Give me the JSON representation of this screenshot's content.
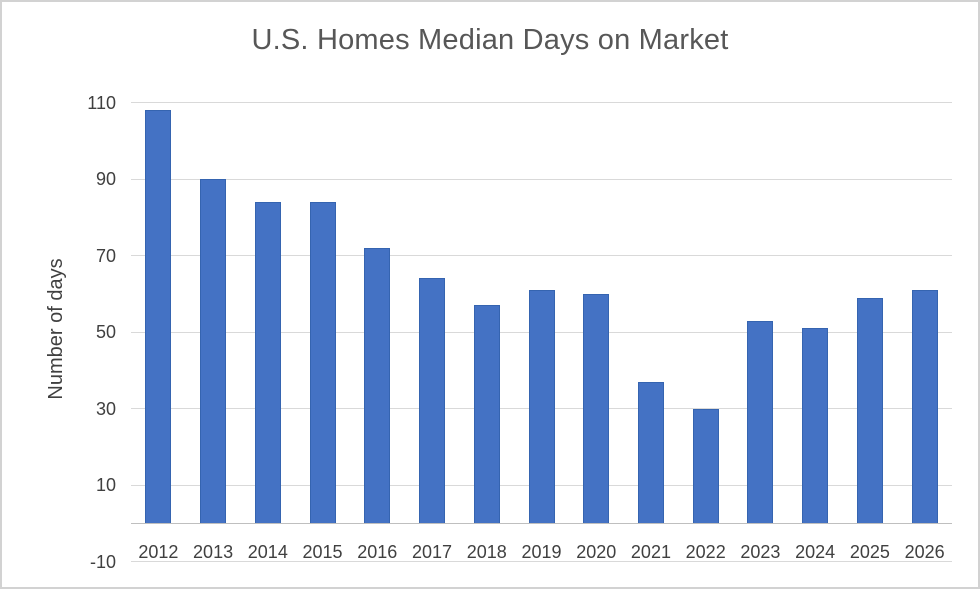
{
  "chart_data": {
    "type": "bar",
    "title": "U.S. Homes Median Days on Market",
    "ylabel": "Number of days",
    "xlabel": "",
    "categories": [
      "2012",
      "2013",
      "2014",
      "2015",
      "2016",
      "2017",
      "2018",
      "2019",
      "2020",
      "2021",
      "2022",
      "2023",
      "2024",
      "2025",
      "2026"
    ],
    "values": [
      108,
      90,
      84,
      84,
      72,
      64,
      57,
      61,
      60,
      37,
      30,
      53,
      51,
      59,
      61
    ],
    "yticks": [
      110,
      90,
      70,
      50,
      30,
      10,
      -10
    ],
    "ylim": [
      -10,
      110
    ],
    "bar_baseline": 0,
    "grid": true,
    "legend": false,
    "colors": {
      "bar_fill": "#4472C4",
      "bar_edge": "#3564B0",
      "gridline": "#D9D9D9",
      "axis_line": "#BFBFBF",
      "tick_text": "#404040",
      "title_text": "#575757",
      "axis_title_text": "#404040",
      "background": "#FFFFFF",
      "frame_border": "#D2D2D2"
    }
  }
}
